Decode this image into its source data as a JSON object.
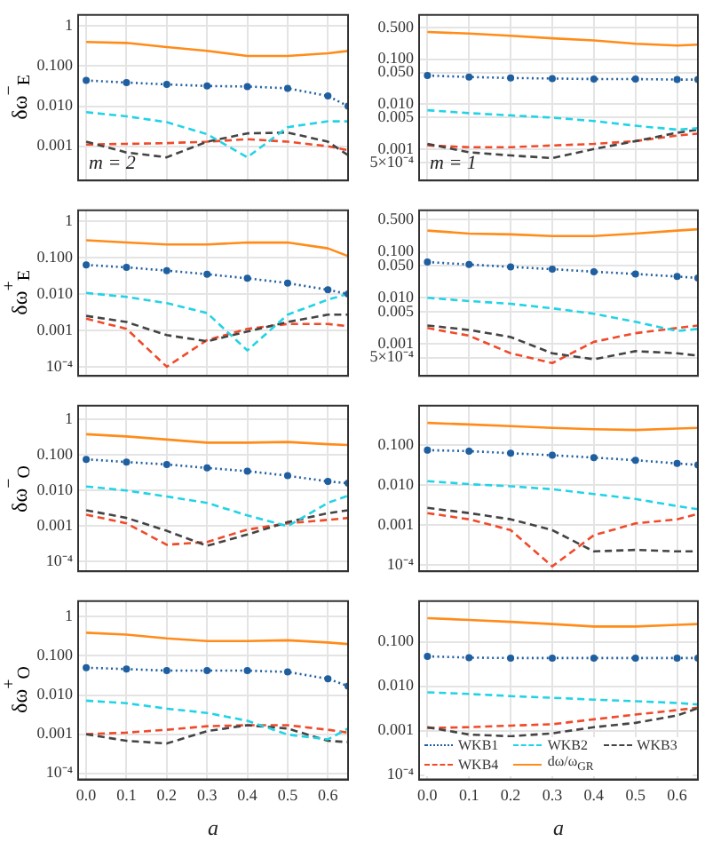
{
  "chart_data": [
    {
      "type": "line",
      "ylabel": "δω$^{−}$$_{E}$",
      "annotations": [
        "m = 2"
      ],
      "log": true,
      "grid": true,
      "tick_labels": "y",
      "x": [
        0,
        0.1,
        0.2,
        0.3,
        0.4,
        0.5,
        0.6,
        0.65
      ],
      "xlim": [
        -0.02,
        0.65
      ],
      "xticks": [
        0,
        0.1,
        0.2,
        0.3,
        0.4,
        0.5,
        0.6
      ],
      "ylim": [
        0.00014,
        1.9
      ],
      "yticks": [
        1,
        {
          "value": 0.1,
          "label": "0.100"
        },
        {
          "value": 0.01,
          "label": "0.010"
        },
        0.001
      ],
      "series": [
        {
          "color": "#1f5fa0",
          "line_style": "dotted",
          "marker": "circle",
          "values": [
            0.044,
            0.039,
            0.035,
            0.032,
            0.031,
            0.028,
            0.018,
            0.01
          ]
        },
        {
          "color": "#22d3e6",
          "line_style": "dashed",
          "values": [
            0.0071,
            0.0056,
            0.004,
            0.002,
            0.00053,
            0.003,
            0.0042,
            0.0042
          ]
        },
        {
          "color": "#444444",
          "line_style": "dashed",
          "values": [
            0.0013,
            0.0007,
            0.00053,
            0.0013,
            0.0021,
            0.0022,
            0.0013,
            0.0006
          ]
        },
        {
          "color": "#f04a2a",
          "line_style": "dashed",
          "values": [
            0.0011,
            0.00115,
            0.0012,
            0.0013,
            0.0015,
            0.0013,
            0.001,
            0.0008
          ]
        },
        {
          "color": "#ff8c1a",
          "line_style": "solid",
          "values": [
            0.4,
            0.38,
            0.3,
            0.24,
            0.18,
            0.18,
            0.21,
            0.24
          ]
        }
      ]
    },
    {
      "type": "line",
      "annotations": [
        "m = 1"
      ],
      "log": true,
      "grid": true,
      "tick_labels": "y",
      "x": [
        0,
        0.1,
        0.2,
        0.3,
        0.4,
        0.5,
        0.6,
        0.65
      ],
      "xlim": [
        -0.02,
        0.65
      ],
      "xticks": [
        0,
        0.1,
        0.2,
        0.3,
        0.4,
        0.5,
        0.6
      ],
      "ylim": [
        0.0002,
        0.96
      ],
      "yticks": [
        {
          "value": 0.5,
          "label": "0.500"
        },
        {
          "value": 0.1,
          "label": "0.100"
        },
        {
          "value": 0.05,
          "label": "0.050"
        },
        {
          "value": 0.01,
          "label": "0.010"
        },
        0.005,
        0.001,
        {
          "value": 0.0005,
          "label": "5×10⁻⁴"
        }
      ],
      "series": [
        {
          "color": "#1f5fa0",
          "line_style": "dotted",
          "marker": "circle",
          "values": [
            0.043,
            0.04,
            0.038,
            0.037,
            0.036,
            0.036,
            0.035,
            0.035
          ]
        },
        {
          "color": "#22d3e6",
          "line_style": "dashed",
          "values": [
            0.0073,
            0.0063,
            0.0056,
            0.005,
            0.0042,
            0.0033,
            0.0027,
            0.0029
          ]
        },
        {
          "color": "#444444",
          "line_style": "dashed",
          "values": [
            0.0013,
            0.00085,
            0.00072,
            0.00063,
            0.001,
            0.0015,
            0.0023,
            0.0027
          ]
        },
        {
          "color": "#f04a2a",
          "line_style": "dashed",
          "values": [
            0.0012,
            0.0011,
            0.0011,
            0.0012,
            0.0013,
            0.0015,
            0.002,
            0.0022
          ]
        },
        {
          "color": "#ff8c1a",
          "line_style": "solid",
          "values": [
            0.4,
            0.37,
            0.33,
            0.29,
            0.26,
            0.22,
            0.2,
            0.21
          ]
        }
      ]
    },
    {
      "type": "line",
      "ylabel": "δω$^{+}$$_{E}$",
      "log": true,
      "grid": true,
      "tick_labels": "y",
      "x": [
        0,
        0.1,
        0.2,
        0.3,
        0.4,
        0.5,
        0.6,
        0.65
      ],
      "xlim": [
        -0.02,
        0.65
      ],
      "xticks": [
        0,
        0.1,
        0.2,
        0.3,
        0.4,
        0.5,
        0.6
      ],
      "ylim": [
        5.6e-05,
        2
      ],
      "yticks": [
        1,
        {
          "value": 0.1,
          "label": "0.100"
        },
        {
          "value": 0.01,
          "label": "0.010"
        },
        0.001,
        {
          "value": 0.0001,
          "label": "10⁻⁴"
        }
      ],
      "series": [
        {
          "color": "#1f5fa0",
          "line_style": "dotted",
          "marker": "circle",
          "values": [
            0.063,
            0.054,
            0.044,
            0.035,
            0.027,
            0.02,
            0.013,
            0.01
          ]
        },
        {
          "color": "#22d3e6",
          "line_style": "dashed",
          "values": [
            0.0107,
            0.0083,
            0.0056,
            0.003,
            0.00028,
            0.0027,
            0.007,
            0.01
          ]
        },
        {
          "color": "#444444",
          "line_style": "dashed",
          "values": [
            0.0025,
            0.0017,
            0.00074,
            0.0005,
            0.00093,
            0.0017,
            0.0027,
            0.0027
          ]
        },
        {
          "color": "#f04a2a",
          "line_style": "dashed",
          "values": [
            0.0021,
            0.0011,
            0.0001,
            0.00054,
            0.0011,
            0.0015,
            0.0015,
            0.0013
          ]
        },
        {
          "color": "#ff8c1a",
          "line_style": "solid",
          "values": [
            0.3,
            0.26,
            0.23,
            0.23,
            0.26,
            0.26,
            0.18,
            0.11
          ]
        }
      ]
    },
    {
      "type": "line",
      "log": true,
      "grid": true,
      "tick_labels": "y",
      "x": [
        0,
        0.1,
        0.2,
        0.3,
        0.4,
        0.5,
        0.6,
        0.65
      ],
      "xlim": [
        -0.02,
        0.65
      ],
      "xticks": [
        0,
        0.1,
        0.2,
        0.3,
        0.4,
        0.5,
        0.6
      ],
      "ylim": [
        0.0002,
        0.8
      ],
      "yticks": [
        {
          "value": 0.5,
          "label": "0.500"
        },
        {
          "value": 0.1,
          "label": "0.100"
        },
        {
          "value": 0.05,
          "label": "0.050"
        },
        {
          "value": 0.01,
          "label": "0.010"
        },
        0.005,
        0.001,
        {
          "value": 0.0005,
          "label": "5×10⁻⁴"
        }
      ],
      "series": [
        {
          "color": "#1f5fa0",
          "line_style": "dotted",
          "marker": "circle",
          "values": [
            0.06,
            0.053,
            0.047,
            0.042,
            0.037,
            0.033,
            0.029,
            0.027
          ]
        },
        {
          "color": "#22d3e6",
          "line_style": "dashed",
          "values": [
            0.01,
            0.0085,
            0.0074,
            0.0059,
            0.0045,
            0.003,
            0.0019,
            0.0021
          ]
        },
        {
          "color": "#444444",
          "line_style": "dashed",
          "values": [
            0.0025,
            0.002,
            0.0014,
            0.00062,
            0.00046,
            0.00069,
            0.00062,
            0.00055
          ]
        },
        {
          "color": "#f04a2a",
          "line_style": "dashed",
          "values": [
            0.0022,
            0.0015,
            0.00062,
            0.00038,
            0.0011,
            0.0017,
            0.0022,
            0.0025
          ]
        },
        {
          "color": "#ff8c1a",
          "line_style": "solid",
          "values": [
            0.29,
            0.25,
            0.24,
            0.22,
            0.22,
            0.25,
            0.29,
            0.31
          ]
        }
      ]
    },
    {
      "type": "line",
      "ylabel": "δω$^{−}$$_{O}$",
      "log": true,
      "grid": true,
      "tick_labels": "y",
      "x": [
        0,
        0.1,
        0.2,
        0.3,
        0.4,
        0.5,
        0.6,
        0.65
      ],
      "xlim": [
        -0.02,
        0.65
      ],
      "xticks": [
        0,
        0.1,
        0.2,
        0.3,
        0.4,
        0.5,
        0.6
      ],
      "ylim": [
        5.4e-05,
        2.4
      ],
      "yticks": [
        1,
        {
          "value": 0.1,
          "label": "0.100"
        },
        {
          "value": 0.01,
          "label": "0.010"
        },
        0.001,
        {
          "value": 0.0001,
          "label": "10⁻⁴"
        }
      ],
      "series": [
        {
          "color": "#1f5fa0",
          "line_style": "dotted",
          "marker": "circle",
          "values": [
            0.075,
            0.063,
            0.054,
            0.043,
            0.035,
            0.026,
            0.018,
            0.016
          ]
        },
        {
          "color": "#22d3e6",
          "line_style": "dashed",
          "values": [
            0.013,
            0.01,
            0.0068,
            0.0045,
            0.002,
            0.001,
            0.0045,
            0.0072
          ]
        },
        {
          "color": "#444444",
          "line_style": "dashed",
          "values": [
            0.0028,
            0.0017,
            0.00074,
            0.00028,
            0.00058,
            0.0013,
            0.0023,
            0.0028
          ]
        },
        {
          "color": "#f04a2a",
          "line_style": "dashed",
          "values": [
            0.0021,
            0.0012,
            0.0003,
            0.00036,
            0.0008,
            0.0012,
            0.0015,
            0.0017
          ]
        },
        {
          "color": "#ff8c1a",
          "line_style": "solid",
          "values": [
            0.38,
            0.33,
            0.27,
            0.22,
            0.22,
            0.23,
            0.2,
            0.19
          ]
        }
      ]
    },
    {
      "type": "line",
      "log": true,
      "grid": true,
      "tick_labels": "y",
      "x": [
        0,
        0.1,
        0.2,
        0.3,
        0.4,
        0.5,
        0.6,
        0.65
      ],
      "xlim": [
        -0.02,
        0.65
      ],
      "xticks": [
        0,
        0.1,
        0.2,
        0.3,
        0.4,
        0.5,
        0.6
      ],
      "ylim": [
        7e-05,
        0.97
      ],
      "yticks": [
        {
          "value": 0.1,
          "label": "0.100"
        },
        {
          "value": 0.01,
          "label": "0.010"
        },
        0.001,
        {
          "value": 0.0001,
          "label": "10⁻⁴"
        }
      ],
      "series": [
        {
          "color": "#1f5fa0",
          "line_style": "dotted",
          "marker": "circle",
          "values": [
            0.075,
            0.071,
            0.063,
            0.056,
            0.049,
            0.042,
            0.035,
            0.032
          ]
        },
        {
          "color": "#22d3e6",
          "line_style": "dashed",
          "values": [
            0.0126,
            0.0106,
            0.0094,
            0.0079,
            0.006,
            0.0045,
            0.003,
            0.0025
          ]
        },
        {
          "color": "#444444",
          "line_style": "dashed",
          "values": [
            0.0027,
            0.002,
            0.0014,
            0.00075,
            0.00022,
            0.00024,
            0.00022,
            0.00022
          ]
        },
        {
          "color": "#f04a2a",
          "line_style": "dashed",
          "values": [
            0.002,
            0.0014,
            0.00075,
            9.3e-05,
            0.00056,
            0.0011,
            0.0014,
            0.0019
          ]
        },
        {
          "color": "#ff8c1a",
          "line_style": "solid",
          "values": [
            0.36,
            0.33,
            0.3,
            0.27,
            0.25,
            0.24,
            0.26,
            0.27
          ]
        }
      ]
    },
    {
      "type": "line",
      "ylabel": "δω$^{+}$$_{O}$",
      "xlabel": "a",
      "log": true,
      "grid": true,
      "x": [
        0,
        0.1,
        0.2,
        0.3,
        0.4,
        0.5,
        0.6,
        0.65
      ],
      "xlim": [
        -0.02,
        0.65
      ],
      "xticks": [
        {
          "value": 0,
          "label": "0.0"
        },
        {
          "value": 0.1,
          "label": "0.1"
        },
        {
          "value": 0.2,
          "label": "0.2"
        },
        {
          "value": 0.3,
          "label": "0.3"
        },
        {
          "value": 0.4,
          "label": "0.4"
        },
        {
          "value": 0.5,
          "label": "0.5"
        },
        {
          "value": 0.6,
          "label": "0.6"
        }
      ],
      "ylim": [
        7.5e-05,
        2.5
      ],
      "yticks": [
        1,
        {
          "value": 0.1,
          "label": "0.100"
        },
        {
          "value": 0.01,
          "label": "0.010"
        },
        0.001,
        {
          "value": 0.0001,
          "label": "10⁻⁴"
        }
      ],
      "series": [
        {
          "color": "#1f5fa0",
          "line_style": "dotted",
          "marker": "circle",
          "values": [
            0.05,
            0.046,
            0.042,
            0.042,
            0.042,
            0.039,
            0.026,
            0.017
          ]
        },
        {
          "color": "#22d3e6",
          "line_style": "dashed",
          "values": [
            0.0072,
            0.0062,
            0.0045,
            0.0035,
            0.0022,
            0.00098,
            0.00074,
            0.0014
          ]
        },
        {
          "color": "#444444",
          "line_style": "dashed",
          "values": [
            0.001,
            0.00068,
            0.00058,
            0.0012,
            0.0017,
            0.0014,
            0.00068,
            0.00063
          ]
        },
        {
          "color": "#f04a2a",
          "line_style": "dashed",
          "values": [
            0.001,
            0.0011,
            0.0013,
            0.0016,
            0.0017,
            0.0017,
            0.0013,
            0.0011
          ]
        },
        {
          "color": "#ff8c1a",
          "line_style": "solid",
          "values": [
            0.39,
            0.35,
            0.28,
            0.24,
            0.24,
            0.25,
            0.22,
            0.2
          ]
        }
      ]
    },
    {
      "type": "line",
      "xlabel": "a",
      "log": true,
      "grid": true,
      "legend": "bottom",
      "x": [
        0,
        0.1,
        0.2,
        0.3,
        0.4,
        0.5,
        0.6,
        0.65
      ],
      "xlim": [
        -0.02,
        0.65
      ],
      "xticks": [
        {
          "value": 0,
          "label": "0.0"
        },
        {
          "value": 0.1,
          "label": "0.1"
        },
        {
          "value": 0.2,
          "label": "0.2"
        },
        {
          "value": 0.3,
          "label": "0.3"
        },
        {
          "value": 0.4,
          "label": "0.4"
        },
        {
          "value": 0.5,
          "label": "0.5"
        },
        {
          "value": 0.6,
          "label": "0.6"
        }
      ],
      "ylim": [
        8e-05,
        0.82
      ],
      "yticks": [
        {
          "value": 0.1,
          "label": "0.100"
        },
        {
          "value": 0.01,
          "label": "0.010"
        },
        0.001,
        {
          "value": 0.0001,
          "label": "10⁻⁴"
        }
      ],
      "series": [
        {
          "name": "WKB1",
          "color": "#1f5fa0",
          "line_style": "dotted",
          "marker": "circle",
          "values": [
            0.047,
            0.044,
            0.043,
            0.043,
            0.043,
            0.043,
            0.043,
            0.043
          ]
        },
        {
          "name": "WKB2",
          "color": "#22d3e6",
          "line_style": "dashed",
          "values": [
            0.0073,
            0.0067,
            0.006,
            0.0055,
            0.005,
            0.0046,
            0.0042,
            0.0039
          ]
        },
        {
          "name": "WKB3",
          "color": "#444444",
          "line_style": "dashed",
          "values": [
            0.0012,
            0.00082,
            0.00075,
            0.00087,
            0.0012,
            0.0015,
            0.0022,
            0.0032
          ]
        },
        {
          "name": "WKB4",
          "color": "#f04a2a",
          "line_style": "dashed",
          "values": [
            0.00115,
            0.0012,
            0.0013,
            0.0014,
            0.0018,
            0.0023,
            0.0029,
            0.0033
          ]
        },
        {
          "name": "dω/ω$_{GR}$",
          "color": "#ff8c1a",
          "line_style": "solid",
          "values": [
            0.34,
            0.31,
            0.28,
            0.25,
            0.22,
            0.22,
            0.24,
            0.25
          ]
        }
      ]
    }
  ]
}
